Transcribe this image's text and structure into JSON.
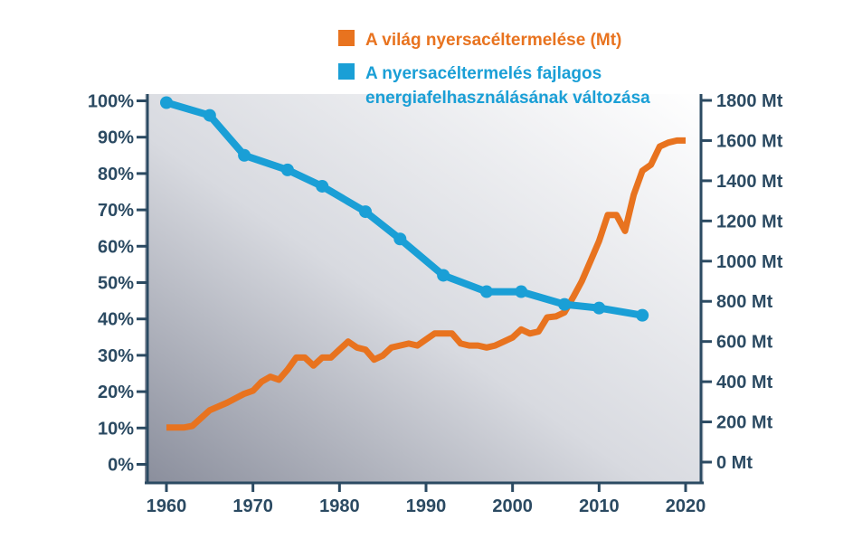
{
  "chart_data": {
    "type": "line",
    "x": {
      "range": [
        1958,
        2022
      ],
      "ticks": [
        1960,
        1970,
        1980,
        1990,
        2000,
        2010,
        2020
      ],
      "tick_labels": [
        "1960",
        "1970",
        "1980",
        "1990",
        "2000",
        "2010",
        "2020"
      ]
    },
    "y_left": {
      "range": [
        0,
        100
      ],
      "ticks": [
        0,
        10,
        20,
        30,
        40,
        50,
        60,
        70,
        80,
        90,
        100
      ],
      "tick_labels": [
        "0%",
        "10%",
        "20%",
        "30%",
        "40%",
        "50%",
        "60%",
        "70%",
        "80%",
        "90%",
        "100%"
      ]
    },
    "y_right": {
      "range": [
        0,
        1800
      ],
      "ticks": [
        0,
        200,
        400,
        600,
        800,
        1000,
        1200,
        1400,
        1600,
        1800
      ],
      "tick_labels": [
        "0 Mt",
        "200 Mt",
        "400 Mt",
        "600 Mt",
        "800 Mt",
        "1000 Mt",
        "1200 Mt",
        "1400 Mt",
        "1600 Mt",
        "1800 Mt"
      ]
    },
    "grid": false,
    "legend_position": "top-right",
    "series": [
      {
        "name": "A világ nyersacéltermelése (Mt)",
        "axis": "right",
        "color": "#e8731f",
        "markers": false,
        "x": [
          1960,
          1962,
          1963,
          1965,
          1967,
          1969,
          1970,
          1971,
          1972,
          1973,
          1974,
          1975,
          1976,
          1977,
          1978,
          1979,
          1980,
          1981,
          1982,
          1983,
          1984,
          1985,
          1986,
          1987,
          1988,
          1989,
          1990,
          1991,
          1992,
          1993,
          1994,
          1995,
          1996,
          1997,
          1998,
          1999,
          2000,
          2001,
          2002,
          2003,
          2004,
          2005,
          2006,
          2007,
          2008,
          2009,
          2010,
          2011,
          2012,
          2013,
          2014,
          2015,
          2016,
          2017,
          2018,
          2019,
          2020
        ],
        "values": [
          172,
          172,
          180,
          258,
          295,
          340,
          355,
          400,
          425,
          410,
          460,
          520,
          520,
          480,
          520,
          520,
          560,
          600,
          570,
          560,
          510,
          530,
          570,
          580,
          590,
          580,
          610,
          640,
          640,
          640,
          590,
          580,
          580,
          570,
          580,
          600,
          620,
          660,
          640,
          650,
          720,
          725,
          745,
          820,
          900,
          1000,
          1100,
          1230,
          1230,
          1150,
          1330,
          1450,
          1480,
          1570,
          1590,
          1600,
          1600
        ]
      },
      {
        "name": "A nyersacéltermelés fajlagos energiafelhasználásának változása",
        "name_lines": [
          "A nyersacéltermelés fajlagos",
          "energiafelhasználásának változása"
        ],
        "axis": "left",
        "color": "#1a9fd6",
        "markers": true,
        "x": [
          1960,
          1965,
          1969,
          1974,
          1978,
          1983,
          1987,
          1992,
          1997,
          2001,
          2006,
          2010,
          2015
        ],
        "values": [
          99.5,
          96,
          85,
          81,
          76.5,
          69.5,
          62,
          52,
          47.5,
          47.5,
          44,
          43,
          41
        ]
      }
    ]
  }
}
